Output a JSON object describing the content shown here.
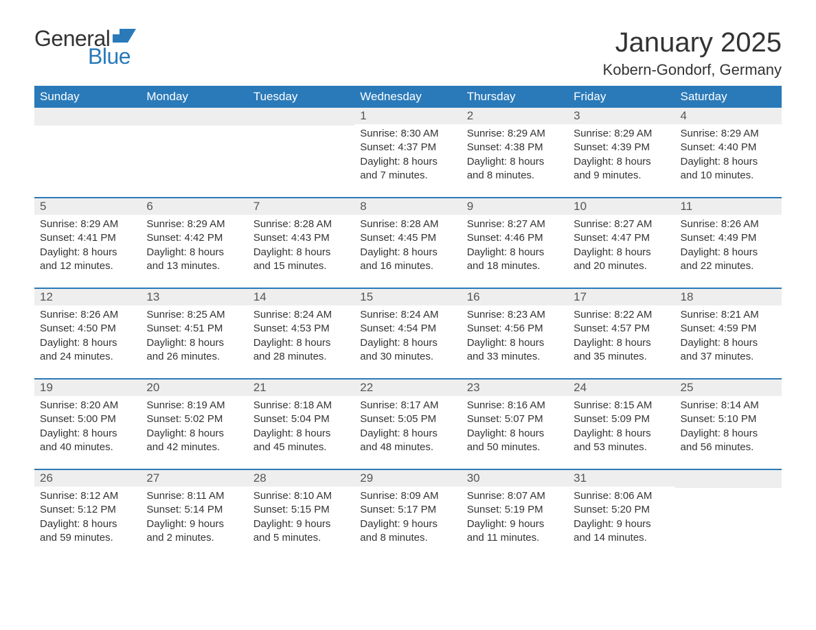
{
  "brand": {
    "name_part1": "General",
    "name_part2": "Blue",
    "flag_color": "#2a7ab9"
  },
  "header": {
    "month_title": "January 2025",
    "location": "Kobern-Gondorf, Germany"
  },
  "styling": {
    "header_bg": "#2a7ab9",
    "header_text": "#ffffff",
    "daynum_bg": "#eeeeee",
    "daynum_text": "#555555",
    "body_text": "#333333",
    "row_border": "#2a7ab9",
    "page_bg": "#ffffff",
    "font_family": "Arial",
    "month_title_fontsize_pt": 30,
    "location_fontsize_pt": 16,
    "weekday_fontsize_pt": 13,
    "daynum_fontsize_pt": 13,
    "cell_fontsize_pt": 11
  },
  "calendar": {
    "weekdays": [
      "Sunday",
      "Monday",
      "Tuesday",
      "Wednesday",
      "Thursday",
      "Friday",
      "Saturday"
    ],
    "weeks": [
      [
        null,
        null,
        null,
        {
          "day": "1",
          "sunrise": "Sunrise: 8:30 AM",
          "sunset": "Sunset: 4:37 PM",
          "daylight1": "Daylight: 8 hours",
          "daylight2": "and 7 minutes."
        },
        {
          "day": "2",
          "sunrise": "Sunrise: 8:29 AM",
          "sunset": "Sunset: 4:38 PM",
          "daylight1": "Daylight: 8 hours",
          "daylight2": "and 8 minutes."
        },
        {
          "day": "3",
          "sunrise": "Sunrise: 8:29 AM",
          "sunset": "Sunset: 4:39 PM",
          "daylight1": "Daylight: 8 hours",
          "daylight2": "and 9 minutes."
        },
        {
          "day": "4",
          "sunrise": "Sunrise: 8:29 AM",
          "sunset": "Sunset: 4:40 PM",
          "daylight1": "Daylight: 8 hours",
          "daylight2": "and 10 minutes."
        }
      ],
      [
        {
          "day": "5",
          "sunrise": "Sunrise: 8:29 AM",
          "sunset": "Sunset: 4:41 PM",
          "daylight1": "Daylight: 8 hours",
          "daylight2": "and 12 minutes."
        },
        {
          "day": "6",
          "sunrise": "Sunrise: 8:29 AM",
          "sunset": "Sunset: 4:42 PM",
          "daylight1": "Daylight: 8 hours",
          "daylight2": "and 13 minutes."
        },
        {
          "day": "7",
          "sunrise": "Sunrise: 8:28 AM",
          "sunset": "Sunset: 4:43 PM",
          "daylight1": "Daylight: 8 hours",
          "daylight2": "and 15 minutes."
        },
        {
          "day": "8",
          "sunrise": "Sunrise: 8:28 AM",
          "sunset": "Sunset: 4:45 PM",
          "daylight1": "Daylight: 8 hours",
          "daylight2": "and 16 minutes."
        },
        {
          "day": "9",
          "sunrise": "Sunrise: 8:27 AM",
          "sunset": "Sunset: 4:46 PM",
          "daylight1": "Daylight: 8 hours",
          "daylight2": "and 18 minutes."
        },
        {
          "day": "10",
          "sunrise": "Sunrise: 8:27 AM",
          "sunset": "Sunset: 4:47 PM",
          "daylight1": "Daylight: 8 hours",
          "daylight2": "and 20 minutes."
        },
        {
          "day": "11",
          "sunrise": "Sunrise: 8:26 AM",
          "sunset": "Sunset: 4:49 PM",
          "daylight1": "Daylight: 8 hours",
          "daylight2": "and 22 minutes."
        }
      ],
      [
        {
          "day": "12",
          "sunrise": "Sunrise: 8:26 AM",
          "sunset": "Sunset: 4:50 PM",
          "daylight1": "Daylight: 8 hours",
          "daylight2": "and 24 minutes."
        },
        {
          "day": "13",
          "sunrise": "Sunrise: 8:25 AM",
          "sunset": "Sunset: 4:51 PM",
          "daylight1": "Daylight: 8 hours",
          "daylight2": "and 26 minutes."
        },
        {
          "day": "14",
          "sunrise": "Sunrise: 8:24 AM",
          "sunset": "Sunset: 4:53 PM",
          "daylight1": "Daylight: 8 hours",
          "daylight2": "and 28 minutes."
        },
        {
          "day": "15",
          "sunrise": "Sunrise: 8:24 AM",
          "sunset": "Sunset: 4:54 PM",
          "daylight1": "Daylight: 8 hours",
          "daylight2": "and 30 minutes."
        },
        {
          "day": "16",
          "sunrise": "Sunrise: 8:23 AM",
          "sunset": "Sunset: 4:56 PM",
          "daylight1": "Daylight: 8 hours",
          "daylight2": "and 33 minutes."
        },
        {
          "day": "17",
          "sunrise": "Sunrise: 8:22 AM",
          "sunset": "Sunset: 4:57 PM",
          "daylight1": "Daylight: 8 hours",
          "daylight2": "and 35 minutes."
        },
        {
          "day": "18",
          "sunrise": "Sunrise: 8:21 AM",
          "sunset": "Sunset: 4:59 PM",
          "daylight1": "Daylight: 8 hours",
          "daylight2": "and 37 minutes."
        }
      ],
      [
        {
          "day": "19",
          "sunrise": "Sunrise: 8:20 AM",
          "sunset": "Sunset: 5:00 PM",
          "daylight1": "Daylight: 8 hours",
          "daylight2": "and 40 minutes."
        },
        {
          "day": "20",
          "sunrise": "Sunrise: 8:19 AM",
          "sunset": "Sunset: 5:02 PM",
          "daylight1": "Daylight: 8 hours",
          "daylight2": "and 42 minutes."
        },
        {
          "day": "21",
          "sunrise": "Sunrise: 8:18 AM",
          "sunset": "Sunset: 5:04 PM",
          "daylight1": "Daylight: 8 hours",
          "daylight2": "and 45 minutes."
        },
        {
          "day": "22",
          "sunrise": "Sunrise: 8:17 AM",
          "sunset": "Sunset: 5:05 PM",
          "daylight1": "Daylight: 8 hours",
          "daylight2": "and 48 minutes."
        },
        {
          "day": "23",
          "sunrise": "Sunrise: 8:16 AM",
          "sunset": "Sunset: 5:07 PM",
          "daylight1": "Daylight: 8 hours",
          "daylight2": "and 50 minutes."
        },
        {
          "day": "24",
          "sunrise": "Sunrise: 8:15 AM",
          "sunset": "Sunset: 5:09 PM",
          "daylight1": "Daylight: 8 hours",
          "daylight2": "and 53 minutes."
        },
        {
          "day": "25",
          "sunrise": "Sunrise: 8:14 AM",
          "sunset": "Sunset: 5:10 PM",
          "daylight1": "Daylight: 8 hours",
          "daylight2": "and 56 minutes."
        }
      ],
      [
        {
          "day": "26",
          "sunrise": "Sunrise: 8:12 AM",
          "sunset": "Sunset: 5:12 PM",
          "daylight1": "Daylight: 8 hours",
          "daylight2": "and 59 minutes."
        },
        {
          "day": "27",
          "sunrise": "Sunrise: 8:11 AM",
          "sunset": "Sunset: 5:14 PM",
          "daylight1": "Daylight: 9 hours",
          "daylight2": "and 2 minutes."
        },
        {
          "day": "28",
          "sunrise": "Sunrise: 8:10 AM",
          "sunset": "Sunset: 5:15 PM",
          "daylight1": "Daylight: 9 hours",
          "daylight2": "and 5 minutes."
        },
        {
          "day": "29",
          "sunrise": "Sunrise: 8:09 AM",
          "sunset": "Sunset: 5:17 PM",
          "daylight1": "Daylight: 9 hours",
          "daylight2": "and 8 minutes."
        },
        {
          "day": "30",
          "sunrise": "Sunrise: 8:07 AM",
          "sunset": "Sunset: 5:19 PM",
          "daylight1": "Daylight: 9 hours",
          "daylight2": "and 11 minutes."
        },
        {
          "day": "31",
          "sunrise": "Sunrise: 8:06 AM",
          "sunset": "Sunset: 5:20 PM",
          "daylight1": "Daylight: 9 hours",
          "daylight2": "and 14 minutes."
        },
        null
      ]
    ]
  }
}
